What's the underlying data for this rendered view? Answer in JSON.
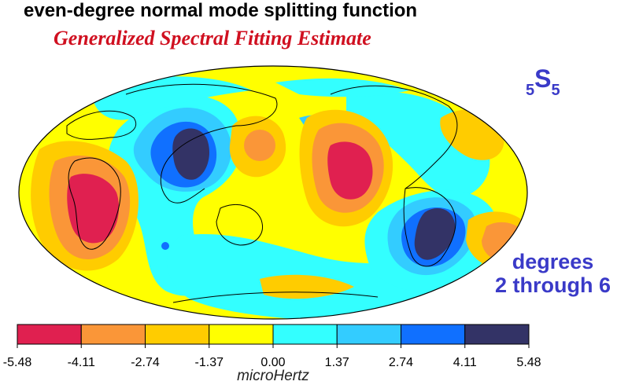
{
  "title": "even-degree normal mode splitting function",
  "subtitle": "Generalized Spectral Fitting Estimate",
  "mode_label": {
    "prefix": "5",
    "letter": "S",
    "suffix": "5"
  },
  "degrees_label": {
    "line1": "degrees",
    "line2": "2 through 6"
  },
  "colorbar": {
    "unit": "microHertz",
    "ticks": [
      "-5.48",
      "-4.11",
      "-2.74",
      "-1.37",
      "0.00",
      "1.37",
      "2.74",
      "4.11",
      "5.48"
    ],
    "colors": [
      "#e02050",
      "#fa9638",
      "#ffcc00",
      "#ffff00",
      "#33ffff",
      "#33ccff",
      "#1070ff",
      "#333366"
    ]
  }
}
